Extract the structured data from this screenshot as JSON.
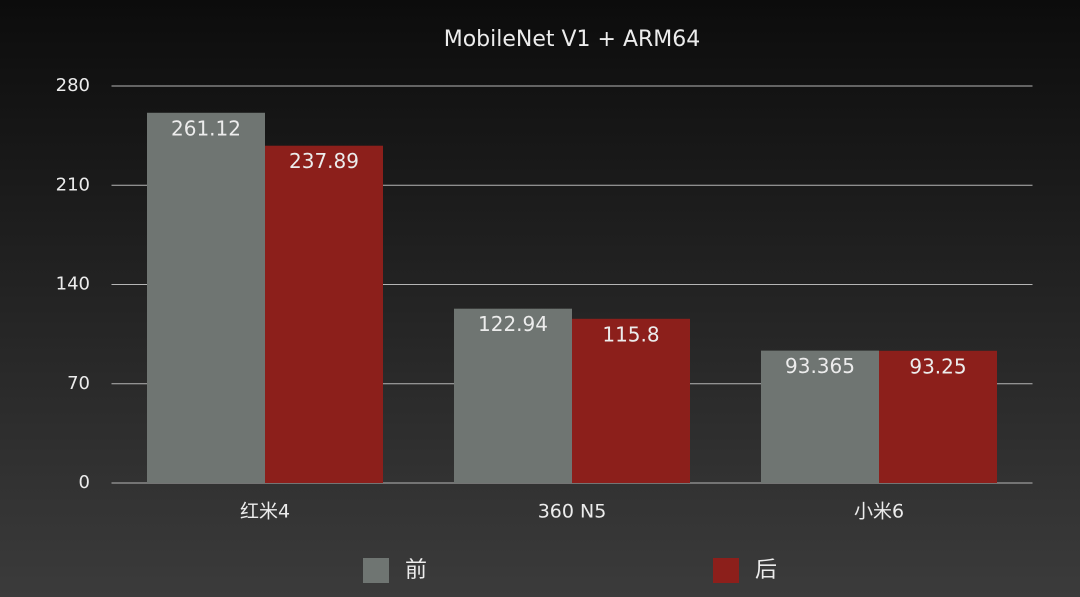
{
  "chart_data": {
    "type": "bar",
    "title": "MobileNet V1 + ARM64",
    "categories": [
      "红米4",
      "360 N5",
      "小米6"
    ],
    "series": [
      {
        "name": "前",
        "color": "#6f7572",
        "values": [
          261.12,
          122.94,
          93.365
        ]
      },
      {
        "name": "后",
        "color": "#8c1f1b",
        "values": [
          237.89,
          115.8,
          93.25
        ]
      }
    ],
    "ylim": [
      0,
      280
    ],
    "yticks": [
      0,
      70,
      140,
      210,
      280
    ],
    "grid": true,
    "legend": "bottom"
  }
}
